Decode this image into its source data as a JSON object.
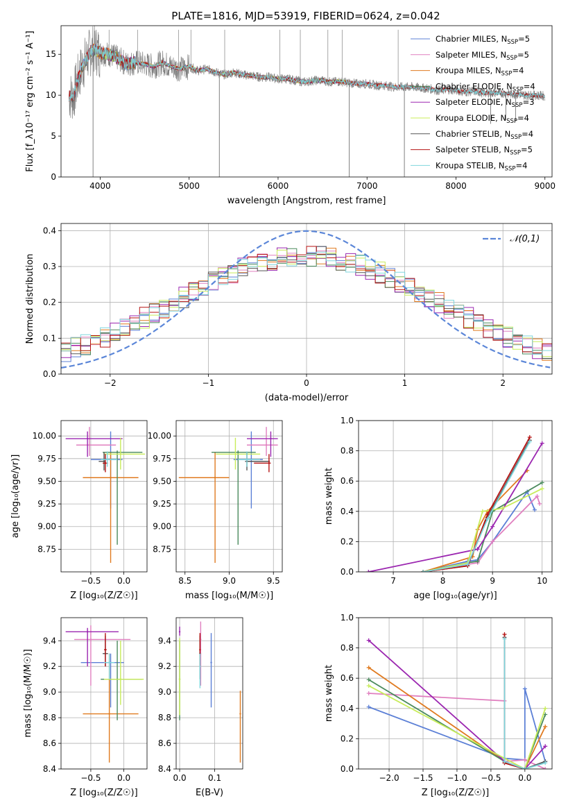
{
  "title": "PLATE=1816, MJD=53919, FIBERID=0624, z=0.042",
  "colors": {
    "Chabrier MILES": "#5b7fd6",
    "Salpeter MILES": "#e07fbf",
    "Kroupa MILES": "#e07a1f",
    "Chabrier ELODIE": "#4a8a5c",
    "Salpeter ELODIE": "#9b26b0",
    "Kroupa ELODIE": "#c8ec5a",
    "Chabrier STELIB": "#555555",
    "Salpeter STELIB": "#b51212",
    "Kroupa STELIB": "#7fd6dd",
    "data": "#808080",
    "normal": "#5b86d8"
  },
  "chart_data": [
    {
      "id": "spectrum",
      "type": "line",
      "xlabel": "wavelength [Angstrom, rest frame]",
      "ylabel": "Flux [f_λ10⁻¹⁷ erg cm⁻² s⁻¹ A⁻¹]",
      "xlim": [
        3560,
        9080
      ],
      "ylim": [
        0,
        18.5
      ],
      "xticks": [
        4000,
        5000,
        6000,
        7000,
        8000,
        9000
      ],
      "yticks": [
        0,
        5,
        10,
        15
      ],
      "grid": false,
      "legend_position": "right",
      "legend": [
        {
          "name": "Chabrier MILES",
          "nssp": "5"
        },
        {
          "name": "Salpeter MILES",
          "nssp": "5"
        },
        {
          "name": "Kroupa MILES",
          "nssp": "4"
        },
        {
          "name": "Chabrier ELODIE",
          "nssp": "4"
        },
        {
          "name": "Salpeter ELODIE",
          "nssp": "3"
        },
        {
          "name": "Kroupa ELODIE",
          "nssp": "4"
        },
        {
          "name": "Chabrier STELIB",
          "nssp": "4"
        },
        {
          "name": "Salpeter STELIB",
          "nssp": "5"
        },
        {
          "name": "Kroupa STELIB",
          "nssp": "4"
        }
      ],
      "data_x": [
        3650,
        3700,
        3750,
        3800,
        3850,
        3900,
        3950,
        4000,
        4100,
        4200,
        4300,
        4400,
        4500,
        4600,
        4700,
        4800,
        4900,
        5000,
        5100,
        5200,
        5300,
        5400,
        5500,
        5600,
        5700,
        5800,
        5900,
        6000,
        6100,
        6200,
        6300,
        6400,
        6500,
        6600,
        6700,
        6800,
        6900,
        7000,
        7100,
        7200,
        7300,
        7400,
        7500,
        7600,
        7700,
        7800,
        7900,
        8000,
        8100,
        8200,
        8300,
        8400,
        8500,
        8600,
        8700,
        8800,
        8900,
        9000
      ],
      "data_y": [
        10.0,
        9.8,
        12.0,
        13.5,
        14.5,
        15.5,
        15.5,
        15.2,
        15.0,
        14.5,
        13.8,
        14.0,
        13.8,
        13.5,
        14.0,
        13.5,
        13.2,
        13.5,
        13.0,
        13.2,
        12.8,
        12.5,
        12.8,
        12.5,
        12.4,
        12.2,
        12.2,
        12.0,
        12.0,
        11.8,
        11.6,
        11.8,
        11.8,
        11.6,
        11.7,
        11.5,
        11.4,
        11.4,
        11.2,
        11.2,
        11.0,
        11.0,
        11.0,
        10.9,
        10.8,
        10.6,
        10.7,
        10.6,
        10.4,
        10.5,
        10.3,
        10.3,
        10.3,
        10.2,
        10.1,
        10.0,
        10.0,
        9.9
      ],
      "spikes_up": [
        [
          4100,
          18
        ],
        [
          4420,
          18
        ],
        [
          4880,
          18
        ],
        [
          5020,
          18
        ],
        [
          5400,
          18
        ],
        [
          6020,
          18
        ],
        [
          6250,
          18
        ],
        [
          6560,
          18
        ],
        [
          6720,
          18
        ],
        [
          7350,
          18
        ]
      ],
      "spikes_down": [
        [
          3920,
          0
        ],
        [
          5340,
          0
        ],
        [
          6800,
          0
        ],
        [
          7420,
          0
        ],
        [
          8390,
          6.5
        ],
        [
          8560,
          7.0
        ],
        [
          8670,
          6.8
        ]
      ]
    },
    {
      "id": "residuals",
      "type": "area",
      "xlabel": "(data-model)/error",
      "ylabel": "Normed distribution",
      "xlim": [
        -2.5,
        2.5
      ],
      "ylim": [
        0,
        0.42
      ],
      "xticks": [
        -2,
        -1,
        0,
        1,
        2
      ],
      "yticks": [
        0.0,
        0.1,
        0.2,
        0.3,
        0.4
      ],
      "grid": true,
      "legend_position": "top-right",
      "normal_label": "𝒩(0,1)",
      "series_order": [
        "Chabrier MILES",
        "Salpeter MILES",
        "Kroupa MILES",
        "Chabrier ELODIE",
        "Salpeter ELODIE",
        "Kroupa ELODIE",
        "Chabrier STELIB",
        "Salpeter STELIB",
        "Kroupa STELIB"
      ]
    },
    {
      "id": "age_vs_Z",
      "type": "scatter",
      "xlabel": "Z [log₁₀(Z/Z☉)]",
      "ylabel": "age  [log₁₀(age/yr)]",
      "xlim": [
        -0.95,
        0.35
      ],
      "ylim": [
        8.5,
        10.17
      ],
      "xticks": [
        -0.5,
        0.0
      ],
      "yticks": [
        8.75,
        9.0,
        9.25,
        9.5,
        9.75,
        10.0
      ],
      "grid": true,
      "points": [
        {
          "model": "Chabrier MILES",
          "x": -0.2,
          "y": 9.74,
          "xlo": -0.5,
          "xhi": -0.02,
          "ylo": 9.2,
          "yhi": 10.05
        },
        {
          "model": "Salpeter MILES",
          "x": -0.52,
          "y": 9.9,
          "xlo": -0.72,
          "xhi": -0.12,
          "ylo": 9.78,
          "yhi": 10.1
        },
        {
          "model": "Kroupa MILES",
          "x": -0.2,
          "y": 9.54,
          "xlo": -0.62,
          "xhi": 0.22,
          "ylo": 8.6,
          "yhi": 9.82
        },
        {
          "model": "Chabrier ELODIE",
          "x": -0.1,
          "y": 9.82,
          "xlo": -0.32,
          "xhi": 0.28,
          "ylo": 8.8,
          "yhi": 9.84
        },
        {
          "model": "Salpeter ELODIE",
          "x": -0.55,
          "y": 9.97,
          "xlo": -0.88,
          "xhi": -0.02,
          "ylo": 9.77,
          "yhi": 10.05
        },
        {
          "model": "Kroupa ELODIE",
          "x": -0.05,
          "y": 9.8,
          "xlo": -0.3,
          "xhi": 0.32,
          "ylo": 9.63,
          "yhi": 9.98
        },
        {
          "model": "Chabrier STELIB",
          "x": -0.3,
          "y": 9.72,
          "xlo": -0.38,
          "xhi": -0.28,
          "ylo": 9.62,
          "yhi": 9.82
        },
        {
          "model": "Salpeter STELIB",
          "x": -0.28,
          "y": 9.7,
          "xlo": -0.32,
          "xhi": -0.24,
          "ylo": 9.6,
          "yhi": 9.8
        },
        {
          "model": "Kroupa STELIB",
          "x": -0.25,
          "y": 9.74,
          "xlo": -0.35,
          "xhi": -0.1,
          "ylo": 9.66,
          "yhi": 9.83
        }
      ]
    },
    {
      "id": "age_vs_mass",
      "type": "scatter",
      "xlabel": "mass [log₁₀(M/M☉)]",
      "ylabel": "",
      "xlim": [
        8.4,
        9.6
      ],
      "ylim": [
        8.5,
        10.17
      ],
      "xticks": [
        8.5,
        9.0,
        9.5
      ],
      "yticks": [
        8.75,
        9.0,
        9.25,
        9.5,
        9.75,
        10.0
      ],
      "grid": true,
      "points": [
        {
          "model": "Chabrier MILES",
          "x": 9.25,
          "y": 9.74,
          "xlo": 9.05,
          "xhi": 9.38,
          "ylo": 9.2,
          "yhi": 10.05
        },
        {
          "model": "Salpeter MILES",
          "x": 9.42,
          "y": 9.9,
          "xlo": 9.2,
          "xhi": 9.55,
          "ylo": 9.78,
          "yhi": 10.1
        },
        {
          "model": "Kroupa MILES",
          "x": 8.84,
          "y": 9.54,
          "xlo": 8.43,
          "xhi": 9.0,
          "ylo": 8.6,
          "yhi": 9.82
        },
        {
          "model": "Chabrier ELODIE",
          "x": 9.1,
          "y": 9.82,
          "xlo": 8.8,
          "xhi": 9.3,
          "ylo": 8.8,
          "yhi": 9.84
        },
        {
          "model": "Salpeter ELODIE",
          "x": 9.47,
          "y": 9.97,
          "xlo": 9.2,
          "xhi": 9.55,
          "ylo": 9.77,
          "yhi": 10.05
        },
        {
          "model": "Kroupa ELODIE",
          "x": 9.07,
          "y": 9.8,
          "xlo": 8.85,
          "xhi": 9.35,
          "ylo": 9.63,
          "yhi": 9.98
        },
        {
          "model": "Chabrier STELIB",
          "x": 9.2,
          "y": 9.72,
          "xlo": 9.18,
          "xhi": 9.46,
          "ylo": 9.62,
          "yhi": 9.82
        },
        {
          "model": "Salpeter STELIB",
          "x": 9.45,
          "y": 9.7,
          "xlo": 9.28,
          "xhi": 9.47,
          "ylo": 9.6,
          "yhi": 9.8
        },
        {
          "model": "Kroupa STELIB",
          "x": 9.2,
          "y": 9.74,
          "xlo": 9.1,
          "xhi": 9.35,
          "ylo": 9.66,
          "yhi": 9.83
        }
      ]
    },
    {
      "id": "weight_vs_age",
      "type": "line",
      "xlabel": "age  [log₁₀(age/yr)]",
      "ylabel": "mass weight",
      "xlim": [
        6.3,
        10.2
      ],
      "ylim": [
        0,
        1.0
      ],
      "xticks": [
        7,
        8,
        9,
        10
      ],
      "yticks": [
        0.0,
        0.2,
        0.4,
        0.6,
        0.8,
        1.0
      ],
      "grid": true,
      "series": [
        {
          "model": "Chabrier MILES",
          "x": [
            7.6,
            8.5,
            8.7,
            9.0,
            9.7,
            9.85
          ],
          "y": [
            0.0,
            0.07,
            0.08,
            0.2,
            0.53,
            0.41
          ]
        },
        {
          "model": "Salpeter MILES",
          "x": [
            7.6,
            8.5,
            8.7,
            9.0,
            9.9,
            9.95
          ],
          "y": [
            0.0,
            0.05,
            0.06,
            0.2,
            0.5,
            0.45
          ]
        },
        {
          "model": "Kroupa MILES",
          "x": [
            7.6,
            8.6,
            8.7,
            8.9,
            9.7
          ],
          "y": [
            0.0,
            0.1,
            0.28,
            0.4,
            0.67
          ]
        },
        {
          "model": "Chabrier ELODIE",
          "x": [
            7.6,
            8.5,
            8.7,
            9.0,
            10.0
          ],
          "y": [
            0.0,
            0.06,
            0.07,
            0.4,
            0.59
          ]
        },
        {
          "model": "Salpeter ELODIE",
          "x": [
            6.5,
            8.7,
            9.0,
            10.0
          ],
          "y": [
            0.0,
            0.15,
            0.3,
            0.85
          ]
        },
        {
          "model": "Kroupa ELODIE",
          "x": [
            7.6,
            8.5,
            8.8,
            9.2,
            10.0
          ],
          "y": [
            0.0,
            0.06,
            0.4,
            0.42,
            0.55
          ]
        },
        {
          "model": "Chabrier STELIB",
          "x": [
            7.6,
            8.5,
            8.9,
            9.75
          ],
          "y": [
            0.0,
            0.04,
            0.36,
            0.87
          ]
        },
        {
          "model": "Salpeter STELIB",
          "x": [
            7.6,
            8.5,
            8.9,
            9.75
          ],
          "y": [
            0.0,
            0.04,
            0.38,
            0.89
          ]
        },
        {
          "model": "Kroupa STELIB",
          "x": [
            7.6,
            8.5,
            8.9,
            9.75
          ],
          "y": [
            0.0,
            0.05,
            0.35,
            0.86
          ]
        }
      ]
    },
    {
      "id": "mass_vs_Z",
      "type": "scatter",
      "xlabel": "Z [log₁₀(Z/Z☉)]",
      "ylabel": "mass [log₁₀(M/M☉)]",
      "xlim": [
        -0.95,
        0.35
      ],
      "ylim": [
        8.4,
        9.58
      ],
      "xticks": [
        -0.5,
        0.0
      ],
      "yticks": [
        8.4,
        8.6,
        8.8,
        9.0,
        9.2,
        9.4
      ],
      "grid": true,
      "points": [
        {
          "model": "Chabrier MILES",
          "x": -0.2,
          "y": 9.23,
          "xlo": -0.65,
          "xhi": 0.0,
          "ylo": 8.88,
          "yhi": 9.3
        },
        {
          "model": "Salpeter MILES",
          "x": -0.5,
          "y": 9.41,
          "xlo": -0.75,
          "xhi": 0.1,
          "ylo": 9.05,
          "yhi": 9.52
        },
        {
          "model": "Kroupa MILES",
          "x": -0.22,
          "y": 8.83,
          "xlo": -0.62,
          "xhi": 0.22,
          "ylo": 8.45,
          "yhi": 9.3
        },
        {
          "model": "Chabrier ELODIE",
          "x": -0.1,
          "y": 9.1,
          "xlo": -0.35,
          "xhi": 0.28,
          "ylo": 8.78,
          "yhi": 9.4
        },
        {
          "model": "Salpeter ELODIE",
          "x": -0.55,
          "y": 9.47,
          "xlo": -0.88,
          "xhi": -0.08,
          "ylo": 9.2,
          "yhi": 9.5
        },
        {
          "model": "Kroupa ELODIE",
          "x": -0.05,
          "y": 9.1,
          "xlo": -0.3,
          "xhi": 0.3,
          "ylo": 8.9,
          "yhi": 9.4
        },
        {
          "model": "Chabrier STELIB",
          "x": -0.28,
          "y": 9.3,
          "xlo": -0.32,
          "xhi": -0.24,
          "ylo": 9.2,
          "yhi": 9.44
        },
        {
          "model": "Salpeter STELIB",
          "x": -0.28,
          "y": 9.33,
          "xlo": -0.3,
          "xhi": -0.26,
          "ylo": 9.2,
          "yhi": 9.46
        },
        {
          "model": "Kroupa STELIB",
          "x": -0.22,
          "y": 9.23,
          "xlo": -0.3,
          "xhi": -0.14,
          "ylo": 9.1,
          "yhi": 9.3
        }
      ]
    },
    {
      "id": "mass_vs_ebv",
      "type": "scatter",
      "xlabel": "E(B-V)",
      "ylabel": "",
      "xlim": [
        -0.01,
        0.18
      ],
      "ylim": [
        8.4,
        9.58
      ],
      "xticks": [
        0.0,
        0.1
      ],
      "yticks": [
        8.4,
        8.6,
        8.8,
        9.0,
        9.2,
        9.4
      ],
      "grid": true,
      "points": [
        {
          "model": "Chabrier MILES",
          "x": 0.09,
          "y": 9.23,
          "ylo": 8.88,
          "yhi": 9.46
        },
        {
          "model": "Salpeter MILES",
          "x": 0.06,
          "y": 9.41,
          "ylo": 9.05,
          "yhi": 9.55
        },
        {
          "model": "Kroupa MILES",
          "x": 0.173,
          "y": 8.83,
          "ylo": 8.45,
          "yhi": 9.01
        },
        {
          "model": "Chabrier ELODIE",
          "x": 0.0,
          "y": 9.1,
          "ylo": 8.78,
          "yhi": 9.4
        },
        {
          "model": "Salpeter ELODIE",
          "x": 0.0,
          "y": 9.47,
          "ylo": 9.44,
          "yhi": 9.51
        },
        {
          "model": "Kroupa ELODIE",
          "x": 0.0,
          "y": 9.1,
          "ylo": 8.82,
          "yhi": 9.42
        },
        {
          "model": "Chabrier STELIB",
          "x": 0.058,
          "y": 9.3,
          "ylo": 9.1,
          "yhi": 9.44
        },
        {
          "model": "Salpeter STELIB",
          "x": 0.058,
          "y": 9.33,
          "ylo": 9.2,
          "yhi": 9.46
        },
        {
          "model": "Kroupa STELIB",
          "x": 0.058,
          "y": 9.2,
          "ylo": 9.03,
          "yhi": 9.3
        }
      ]
    },
    {
      "id": "weight_vs_Z",
      "type": "line",
      "xlabel": "Z [log₁₀(Z/Z☉)]",
      "ylabel": "mass weight",
      "xlim": [
        -2.45,
        0.4
      ],
      "ylim": [
        0,
        1.0
      ],
      "xticks": [
        -2.0,
        -1.5,
        -1.0,
        -0.5,
        0.0
      ],
      "xticklabels": [
        "−2.0",
        "−1.5",
        "−1.0",
        "−0.5",
        "0.0"
      ],
      "yticks": [
        0.0,
        0.2,
        0.4,
        0.6,
        0.8,
        1.0
      ],
      "grid": true,
      "series": [
        {
          "model": "Chabrier MILES",
          "x": [
            -2.3,
            -0.3,
            0.0,
            0.0,
            0.3
          ],
          "y": [
            0.41,
            0.07,
            0.06,
            0.53,
            0.05
          ]
        },
        {
          "model": "Salpeter MILES",
          "x": [
            -2.3,
            -0.3,
            -0.3,
            0.0,
            0.3
          ],
          "y": [
            0.5,
            0.45,
            0.05,
            0.06,
            0.0
          ]
        },
        {
          "model": "Kroupa MILES",
          "x": [
            -2.3,
            -0.3,
            0.0,
            0.3
          ],
          "y": [
            0.67,
            0.05,
            0.0,
            0.28
          ]
        },
        {
          "model": "Chabrier ELODIE",
          "x": [
            -2.3,
            -0.3,
            0.0,
            0.3
          ],
          "y": [
            0.59,
            0.05,
            0.0,
            0.36
          ]
        },
        {
          "model": "Salpeter ELODIE",
          "x": [
            -2.3,
            -0.3,
            0.0,
            0.3
          ],
          "y": [
            0.85,
            0.05,
            0.0,
            0.15
          ]
        },
        {
          "model": "Kroupa ELODIE",
          "x": [
            -2.3,
            -0.3,
            0.0,
            0.3
          ],
          "y": [
            0.55,
            0.07,
            0.0,
            0.4
          ]
        },
        {
          "model": "Chabrier STELIB",
          "x": [
            -0.3,
            -0.3,
            0.0,
            0.3
          ],
          "y": [
            0.87,
            0.04,
            0.0,
            0.05
          ]
        },
        {
          "model": "Salpeter STELIB",
          "x": [
            -0.3,
            -0.3,
            0.0
          ],
          "y": [
            0.89,
            0.04,
            0.0
          ]
        },
        {
          "model": "Kroupa STELIB",
          "x": [
            -0.3,
            -0.3,
            0.0,
            0.3
          ],
          "y": [
            0.86,
            0.05,
            0.0,
            0.04
          ]
        }
      ]
    }
  ]
}
